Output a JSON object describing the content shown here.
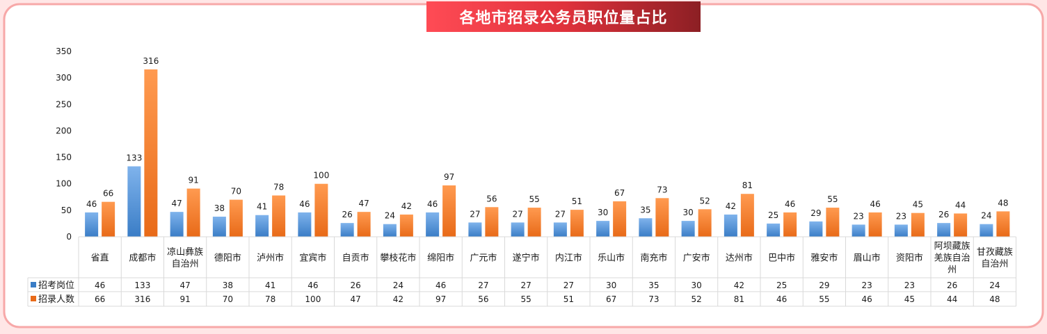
{
  "title": "各地市招录公务员职位量占比",
  "colors": {
    "frame_border": "#f7a8a8",
    "panel_bg": "#ffffff",
    "series1_top": "#7fb3ec",
    "series1_bottom": "#3a7dc6",
    "series2_top": "#ff9a50",
    "series2_bottom": "#e86a18",
    "grid": "#d9d9d9",
    "text": "#1a1a1a"
  },
  "chart_data": {
    "type": "bar",
    "title": "各地市招录公务员职位量占比",
    "ylim": [
      0,
      350
    ],
    "yticks": [
      "0",
      "50",
      "100",
      "150",
      "200",
      "250",
      "300",
      "350"
    ],
    "ytick_values": [
      0,
      50,
      100,
      150,
      200,
      250,
      300,
      350
    ],
    "grid": false,
    "legend": "data-table",
    "categories": [
      [
        "省直"
      ],
      [
        "成都市"
      ],
      [
        "凉山彝族",
        "自治州"
      ],
      [
        "德阳市"
      ],
      [
        "泸州市"
      ],
      [
        "宜宾市"
      ],
      [
        "自贡市"
      ],
      [
        "攀枝花市"
      ],
      [
        "绵阳市"
      ],
      [
        "广元市"
      ],
      [
        "遂宁市"
      ],
      [
        "内江市"
      ],
      [
        "乐山市"
      ],
      [
        "南充市"
      ],
      [
        "广安市"
      ],
      [
        "达州市"
      ],
      [
        "巴中市"
      ],
      [
        "雅安市"
      ],
      [
        "眉山市"
      ],
      [
        "资阳市"
      ],
      [
        "阿坝藏族",
        "羌族自治",
        "州"
      ],
      [
        "甘孜藏族",
        "自治州"
      ]
    ],
    "series": [
      {
        "name": "招考岗位",
        "values": [
          46,
          133,
          47,
          38,
          41,
          46,
          26,
          24,
          46,
          27,
          27,
          27,
          30,
          35,
          30,
          42,
          25,
          29,
          23,
          23,
          26,
          24
        ]
      },
      {
        "name": "招录人数",
        "values": [
          66,
          316,
          91,
          70,
          78,
          100,
          47,
          42,
          97,
          56,
          55,
          51,
          67,
          73,
          52,
          81,
          46,
          55,
          46,
          45,
          44,
          48
        ]
      }
    ]
  }
}
